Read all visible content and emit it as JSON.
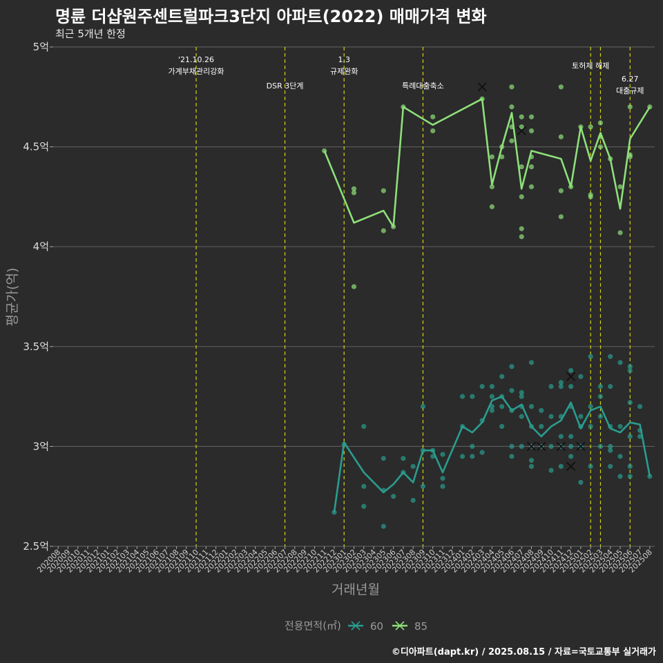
{
  "title": "명륜 더샵원주센트럴파크3단지 아파트(2022) 매매가격 변화",
  "subtitle": "최근 5개년 한정",
  "credit": "©디아파트(dapt.kr) / 2025.08.15 / 자료=국토교통부 실거래가",
  "colors": {
    "background": "#2b2b2b",
    "grid": "#5a5a5a",
    "event_line": "#d4d411",
    "series_60": "#2a9d8f",
    "series_85": "#8ee07a"
  },
  "chart_data": {
    "type": "line",
    "xlabel": "거래년월",
    "ylabel": "평균가(억)",
    "ylim": [
      2.5,
      5
    ],
    "y_ticks": [
      2.5,
      3,
      3.5,
      4,
      4.5,
      5
    ],
    "y_tick_labels": [
      "2.5억",
      "3억",
      "3.5억",
      "4억",
      "4.5억",
      "5억"
    ],
    "grid": true,
    "legend": {
      "title": "전용면적(㎡)",
      "position": "bottom",
      "entries": [
        "60",
        "85"
      ]
    },
    "x_categories": [
      "202008",
      "202009",
      "202010",
      "202011",
      "202012",
      "202101",
      "202102",
      "202103",
      "202104",
      "202105",
      "202106",
      "202107",
      "202108",
      "202109",
      "202110",
      "202111",
      "202112",
      "202201",
      "202202",
      "202203",
      "202204",
      "202205",
      "202206",
      "202207",
      "202208",
      "202209",
      "202210",
      "202211",
      "202212",
      "202301",
      "202302",
      "202303",
      "202304",
      "202305",
      "202306",
      "202307",
      "202308",
      "202309",
      "202310",
      "202311",
      "202312",
      "202401",
      "202402",
      "202403",
      "202404",
      "202405",
      "202406",
      "202407",
      "202408",
      "202409",
      "202410",
      "202411",
      "202412",
      "202501",
      "202502",
      "202503",
      "202504",
      "202505",
      "202506",
      "202507",
      "202508"
    ],
    "events": [
      {
        "x": "202110",
        "label": "'21.10.26\n가계부채관리강화"
      },
      {
        "x": "202207",
        "label": "DSR 3단계"
      },
      {
        "x": "202301",
        "label": "1.3\n규제완화"
      },
      {
        "x": "202309",
        "label": "특례대출축소"
      },
      {
        "x": "202502",
        "label": "토허제 해제"
      },
      {
        "x": "202503",
        "label": ""
      },
      {
        "x": "202506",
        "label": "6.27\n대출규제"
      }
    ],
    "series": [
      {
        "name": "60",
        "line": [
          [
            "202212",
            2.67
          ],
          [
            "202301",
            3.02
          ],
          [
            "202303",
            2.87
          ],
          [
            "202305",
            2.77
          ],
          [
            "202306",
            2.81
          ],
          [
            "202307",
            2.87
          ],
          [
            "202308",
            2.82
          ],
          [
            "202309",
            2.98
          ],
          [
            "202310",
            2.98
          ],
          [
            "202311",
            2.87
          ],
          [
            "202401",
            3.1
          ],
          [
            "202402",
            3.07
          ],
          [
            "202403",
            3.12
          ],
          [
            "202404",
            3.23
          ],
          [
            "202405",
            3.25
          ],
          [
            "202406",
            3.18
          ],
          [
            "202407",
            3.21
          ],
          [
            "202408",
            3.1
          ],
          [
            "202409",
            3.05
          ],
          [
            "202410",
            3.1
          ],
          [
            "202411",
            3.13
          ],
          [
            "202412",
            3.22
          ],
          [
            "202501",
            3.09
          ],
          [
            "202502",
            3.18
          ],
          [
            "202503",
            3.2
          ],
          [
            "202504",
            3.09
          ],
          [
            "202505",
            3.07
          ],
          [
            "202506",
            3.12
          ],
          [
            "202507",
            3.11
          ],
          [
            "202508",
            2.85
          ]
        ],
        "points": [
          [
            "202212",
            2.67
          ],
          [
            "202301",
            3.01
          ],
          [
            "202303",
            2.8
          ],
          [
            "202303",
            2.7
          ],
          [
            "202303",
            3.1
          ],
          [
            "202305",
            2.94
          ],
          [
            "202305",
            2.78
          ],
          [
            "202305",
            2.6
          ],
          [
            "202306",
            2.75
          ],
          [
            "202307",
            2.94
          ],
          [
            "202307",
            2.87
          ],
          [
            "202308",
            2.73
          ],
          [
            "202308",
            2.9
          ],
          [
            "202309",
            3.2
          ],
          [
            "202309",
            2.98
          ],
          [
            "202309",
            2.8
          ],
          [
            "202310",
            2.98
          ],
          [
            "202310",
            2.95
          ],
          [
            "202311",
            2.96
          ],
          [
            "202311",
            2.84
          ],
          [
            "202311",
            2.8
          ],
          [
            "202401",
            3.25
          ],
          [
            "202401",
            3.1
          ],
          [
            "202401",
            2.95
          ],
          [
            "202402",
            3.25
          ],
          [
            "202402",
            3.0
          ],
          [
            "202402",
            2.95
          ],
          [
            "202403",
            3.3
          ],
          [
            "202403",
            3.13
          ],
          [
            "202403",
            2.97
          ],
          [
            "202404",
            3.3
          ],
          [
            "202404",
            3.25
          ],
          [
            "202404",
            3.2
          ],
          [
            "202404",
            3.18
          ],
          [
            "202405",
            3.35
          ],
          [
            "202405",
            3.25
          ],
          [
            "202405",
            3.2
          ],
          [
            "202405",
            3.1
          ],
          [
            "202406",
            3.4
          ],
          [
            "202406",
            3.28
          ],
          [
            "202406",
            3.18
          ],
          [
            "202406",
            3.0
          ],
          [
            "202406",
            2.95
          ],
          [
            "202407",
            3.27
          ],
          [
            "202407",
            3.25
          ],
          [
            "202407",
            3.2
          ],
          [
            "202407",
            3.15
          ],
          [
            "202407",
            3.0
          ],
          [
            "202408",
            3.42
          ],
          [
            "202408",
            3.2
          ],
          [
            "202408",
            3.1
          ],
          [
            "202408",
            3.0
          ],
          [
            "202408",
            2.93
          ],
          [
            "202408",
            2.9
          ],
          [
            "202409",
            3.18
          ],
          [
            "202409",
            3.1
          ],
          [
            "202409",
            3.0
          ],
          [
            "202410",
            3.3
          ],
          [
            "202410",
            3.15
          ],
          [
            "202410",
            3.0
          ],
          [
            "202410",
            2.88
          ],
          [
            "202411",
            3.32
          ],
          [
            "202411",
            3.3
          ],
          [
            "202411",
            3.15
          ],
          [
            "202411",
            3.05
          ],
          [
            "202411",
            3.0
          ],
          [
            "202411",
            2.9
          ],
          [
            "202412",
            3.38
          ],
          [
            "202412",
            3.3
          ],
          [
            "202412",
            3.2
          ],
          [
            "202412",
            3.05
          ],
          [
            "202412",
            3.0
          ],
          [
            "202412",
            2.95
          ],
          [
            "202501",
            3.35
          ],
          [
            "202501",
            3.15
          ],
          [
            "202501",
            3.1
          ],
          [
            "202501",
            3.0
          ],
          [
            "202501",
            2.82
          ],
          [
            "202502",
            3.45
          ],
          [
            "202502",
            3.2
          ],
          [
            "202502",
            3.1
          ],
          [
            "202502",
            2.9
          ],
          [
            "202503",
            3.3
          ],
          [
            "202503",
            3.25
          ],
          [
            "202503",
            3.15
          ],
          [
            "202503",
            3.0
          ],
          [
            "202504",
            3.45
          ],
          [
            "202504",
            3.3
          ],
          [
            "202504",
            3.1
          ],
          [
            "202504",
            3.0
          ],
          [
            "202504",
            2.98
          ],
          [
            "202504",
            2.9
          ],
          [
            "202505",
            3.42
          ],
          [
            "202505",
            3.1
          ],
          [
            "202505",
            2.95
          ],
          [
            "202505",
            2.85
          ],
          [
            "202506",
            3.4
          ],
          [
            "202506",
            3.38
          ],
          [
            "202506",
            3.22
          ],
          [
            "202506",
            3.05
          ],
          [
            "202506",
            2.9
          ],
          [
            "202506",
            2.85
          ],
          [
            "202507",
            3.2
          ],
          [
            "202507",
            3.08
          ],
          [
            "202507",
            3.05
          ],
          [
            "202508",
            2.85
          ]
        ],
        "cancelled": [
          [
            "202408",
            3.0
          ],
          [
            "202409",
            3.0
          ],
          [
            "202411",
            3.0
          ],
          [
            "202412",
            3.35
          ],
          [
            "202412",
            2.9
          ],
          [
            "202501",
            3.0
          ]
        ]
      },
      {
        "name": "85",
        "line": [
          [
            "202211",
            4.48
          ],
          [
            "202302",
            4.12
          ],
          [
            "202305",
            4.18
          ],
          [
            "202306",
            4.1
          ],
          [
            "202307",
            4.7
          ],
          [
            "202310",
            4.61
          ],
          [
            "202403",
            4.74
          ],
          [
            "202404",
            4.31
          ],
          [
            "202405",
            4.5
          ],
          [
            "202406",
            4.67
          ],
          [
            "202407",
            4.29
          ],
          [
            "202408",
            4.48
          ],
          [
            "202411",
            4.44
          ],
          [
            "202412",
            4.3
          ],
          [
            "202501",
            4.6
          ],
          [
            "202502",
            4.43
          ],
          [
            "202503",
            4.57
          ],
          [
            "202504",
            4.44
          ],
          [
            "202505",
            4.19
          ],
          [
            "202506",
            4.54
          ],
          [
            "202508",
            4.7
          ]
        ],
        "points": [
          [
            "202211",
            4.48
          ],
          [
            "202302",
            4.29
          ],
          [
            "202302",
            4.27
          ],
          [
            "202302",
            3.8
          ],
          [
            "202305",
            4.28
          ],
          [
            "202305",
            4.08
          ],
          [
            "202306",
            4.1
          ],
          [
            "202307",
            4.7
          ],
          [
            "202310",
            4.65
          ],
          [
            "202310",
            4.58
          ],
          [
            "202403",
            4.74
          ],
          [
            "202404",
            4.45
          ],
          [
            "202404",
            4.3
          ],
          [
            "202404",
            4.2
          ],
          [
            "202405",
            4.5
          ],
          [
            "202405",
            4.45
          ],
          [
            "202406",
            4.8
          ],
          [
            "202406",
            4.7
          ],
          [
            "202406",
            4.6
          ],
          [
            "202406",
            4.53
          ],
          [
            "202407",
            4.65
          ],
          [
            "202407",
            4.6
          ],
          [
            "202407",
            4.4
          ],
          [
            "202407",
            4.25
          ],
          [
            "202407",
            4.09
          ],
          [
            "202407",
            4.05
          ],
          [
            "202408",
            4.65
          ],
          [
            "202408",
            4.58
          ],
          [
            "202408",
            4.45
          ],
          [
            "202408",
            4.4
          ],
          [
            "202408",
            4.3
          ],
          [
            "202411",
            4.8
          ],
          [
            "202411",
            4.55
          ],
          [
            "202411",
            4.28
          ],
          [
            "202411",
            4.15
          ],
          [
            "202412",
            4.3
          ],
          [
            "202501",
            4.6
          ],
          [
            "202502",
            4.6
          ],
          [
            "202502",
            4.26
          ],
          [
            "202502",
            4.25
          ],
          [
            "202503",
            4.62
          ],
          [
            "202503",
            4.55
          ],
          [
            "202503",
            4.5
          ],
          [
            "202504",
            4.44
          ],
          [
            "202505",
            4.3
          ],
          [
            "202505",
            4.07
          ],
          [
            "202506",
            4.7
          ],
          [
            "202506",
            4.46
          ],
          [
            "202506",
            4.45
          ],
          [
            "202508",
            4.7
          ]
        ],
        "cancelled": [
          [
            "202403",
            4.8
          ],
          [
            "202407",
            4.58
          ]
        ]
      }
    ]
  }
}
